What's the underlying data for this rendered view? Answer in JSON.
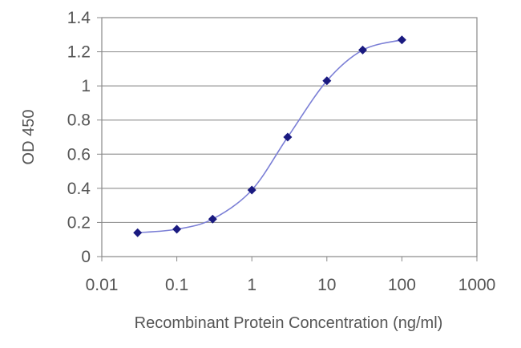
{
  "chart_data": {
    "type": "line",
    "title": "",
    "xlabel": "Recombinant Protein Concentration (ng/ml)",
    "ylabel": "OD 450",
    "x_scale": "log",
    "xlim": [
      0.01,
      1000
    ],
    "ylim": [
      0,
      1.4
    ],
    "x_ticks": [
      "0.01",
      "0.1",
      "1",
      "10",
      "100",
      "1000"
    ],
    "y_ticks": [
      "0",
      "0.2",
      "0.4",
      "0.6",
      "0.8",
      "1",
      "1.2",
      "1.4"
    ],
    "grid": "horizontal",
    "legend": "none",
    "series": [
      {
        "x": [
          0.03,
          0.1,
          0.3,
          1,
          3,
          10,
          30,
          100
        ],
        "y": [
          0.14,
          0.16,
          0.22,
          0.39,
          0.7,
          1.03,
          1.21,
          1.27
        ]
      }
    ],
    "colors": {
      "line": "#7b7fd6",
      "marker": "#1a1a80",
      "grid": "#999999",
      "frame": "#888888",
      "text": "#555555"
    }
  }
}
